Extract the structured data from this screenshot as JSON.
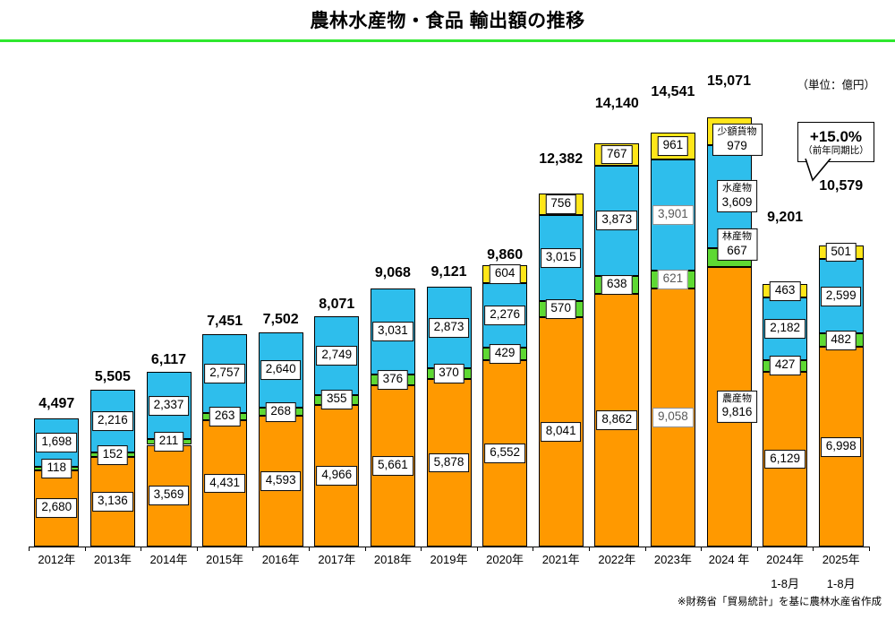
{
  "header": {
    "title": "農林水産物・食品 輸出額の推移",
    "unit_label": "（単位：億円）",
    "accent_green": "#2EE82E"
  },
  "callout": {
    "line1": "+15.0%",
    "line2": "（前年同期比）"
  },
  "footnote": {
    "text": "※財務省「貿易統計」を基に農林水産省作成"
  },
  "chart_data": {
    "type": "bar",
    "stacked": true,
    "title": "農林水産物・食品 輸出額の推移",
    "value_unit": "億円",
    "legend_position": "in-bar-2024",
    "grid": false,
    "series_order": [
      "agri",
      "forest",
      "fish",
      "small"
    ],
    "series_names": {
      "agri": "農産物",
      "forest": "林産物",
      "fish": "水産物",
      "small": "少額貨物"
    },
    "colors": {
      "agri": "#FF9900",
      "forest": "#5ED933",
      "fish": "#2EBEEC",
      "small": "#FFE619"
    },
    "bars": [
      {
        "label": "2012年",
        "total": "4,497",
        "total_value": 4497,
        "segments": [
          {
            "key": "agri",
            "value": 2680,
            "display": "2,680"
          },
          {
            "key": "forest",
            "value": 118,
            "display": "118"
          },
          {
            "key": "fish",
            "value": 1698,
            "display": "1,698"
          }
        ]
      },
      {
        "label": "2013年",
        "total": "5,505",
        "total_value": 5505,
        "segments": [
          {
            "key": "agri",
            "value": 3136,
            "display": "3,136"
          },
          {
            "key": "forest",
            "value": 152,
            "display": "152"
          },
          {
            "key": "fish",
            "value": 2216,
            "display": "2,216"
          }
        ]
      },
      {
        "label": "2014年",
        "total": "6,117",
        "total_value": 6117,
        "segments": [
          {
            "key": "agri",
            "value": 3569,
            "display": "3,569"
          },
          {
            "key": "forest",
            "value": 211,
            "display": "211"
          },
          {
            "key": "fish",
            "value": 2337,
            "display": "2,337"
          }
        ]
      },
      {
        "label": "2015年",
        "total": "7,451",
        "total_value": 7451,
        "segments": [
          {
            "key": "agri",
            "value": 4431,
            "display": "4,431"
          },
          {
            "key": "forest",
            "value": 263,
            "display": "263"
          },
          {
            "key": "fish",
            "value": 2757,
            "display": "2,757"
          }
        ]
      },
      {
        "label": "2016年",
        "total": "7,502",
        "total_value": 7502,
        "segments": [
          {
            "key": "agri",
            "value": 4593,
            "display": "4,593"
          },
          {
            "key": "forest",
            "value": 268,
            "display": "268"
          },
          {
            "key": "fish",
            "value": 2640,
            "display": "2,640"
          }
        ]
      },
      {
        "label": "2017年",
        "total": "8,071",
        "total_value": 8071,
        "segments": [
          {
            "key": "agri",
            "value": 4966,
            "display": "4,966"
          },
          {
            "key": "forest",
            "value": 355,
            "display": "355"
          },
          {
            "key": "fish",
            "value": 2749,
            "display": "2,749"
          }
        ]
      },
      {
        "label": "2018年",
        "total": "9,068",
        "total_value": 9068,
        "segments": [
          {
            "key": "agri",
            "value": 5661,
            "display": "5,661"
          },
          {
            "key": "forest",
            "value": 376,
            "display": "376"
          },
          {
            "key": "fish",
            "value": 3031,
            "display": "3,031"
          }
        ]
      },
      {
        "label": "2019年",
        "total": "9,121",
        "total_value": 9121,
        "segments": [
          {
            "key": "agri",
            "value": 5878,
            "display": "5,878"
          },
          {
            "key": "forest",
            "value": 370,
            "display": "370"
          },
          {
            "key": "fish",
            "value": 2873,
            "display": "2,873"
          }
        ]
      },
      {
        "label": "2020年",
        "total": "9,860",
        "total_value": 9860,
        "segments": [
          {
            "key": "agri",
            "value": 6552,
            "display": "6,552"
          },
          {
            "key": "forest",
            "value": 429,
            "display": "429"
          },
          {
            "key": "fish",
            "value": 2276,
            "display": "2,276"
          },
          {
            "key": "small",
            "value": 604,
            "display": "604"
          }
        ]
      },
      {
        "label": "2021年",
        "total": "12,382",
        "total_value": 12382,
        "segments": [
          {
            "key": "agri",
            "value": 8041,
            "display": "8,041"
          },
          {
            "key": "forest",
            "value": 570,
            "display": "570"
          },
          {
            "key": "fish",
            "value": 3015,
            "display": "3,015"
          },
          {
            "key": "small",
            "value": 756,
            "display": "756"
          }
        ]
      },
      {
        "label": "2022年",
        "total": "14,140",
        "total_value": 14140,
        "segments": [
          {
            "key": "agri",
            "value": 8862,
            "display": "8,862"
          },
          {
            "key": "forest",
            "value": 638,
            "display": "638"
          },
          {
            "key": "fish",
            "value": 3873,
            "display": "3,873"
          },
          {
            "key": "small",
            "value": 767,
            "display": "767"
          }
        ]
      },
      {
        "label": "2023年",
        "total": "14,541",
        "total_value": 14541,
        "segments": [
          {
            "key": "agri",
            "value": 9058,
            "display": "9,058",
            "muted": true
          },
          {
            "key": "forest",
            "value": 621,
            "display": "621",
            "muted": true
          },
          {
            "key": "fish",
            "value": 3901,
            "display": "3,901",
            "muted": true
          },
          {
            "key": "small",
            "value": 961,
            "display": "961"
          }
        ]
      },
      {
        "label": "2024 年",
        "total": "15,071",
        "total_value": 15071,
        "segments": [
          {
            "key": "agri",
            "value": 9816,
            "display": "9,816",
            "name": "農産物"
          },
          {
            "key": "forest",
            "value": 667,
            "display": "667",
            "name": "林産物"
          },
          {
            "key": "fish",
            "value": 3609,
            "display": "3,609",
            "name": "水産物"
          },
          {
            "key": "small",
            "value": 979,
            "display": "979",
            "name": "少額貨物"
          }
        ]
      },
      {
        "label": "2024年",
        "label2": "1-8月",
        "total": "9,201",
        "total_value": 9201,
        "segments": [
          {
            "key": "agri",
            "value": 6129,
            "display": "6,129"
          },
          {
            "key": "forest",
            "value": 427,
            "display": "427"
          },
          {
            "key": "fish",
            "value": 2182,
            "display": "2,182"
          },
          {
            "key": "small",
            "value": 463,
            "display": "463"
          }
        ]
      },
      {
        "label": "2025年",
        "label2": "1-8月",
        "total": "10,579",
        "total_value": 10579,
        "segments": [
          {
            "key": "agri",
            "value": 6998,
            "display": "6,998"
          },
          {
            "key": "forest",
            "value": 482,
            "display": "482"
          },
          {
            "key": "fish",
            "value": 2599,
            "display": "2,599"
          },
          {
            "key": "small",
            "value": 501,
            "display": "501"
          }
        ]
      }
    ]
  }
}
